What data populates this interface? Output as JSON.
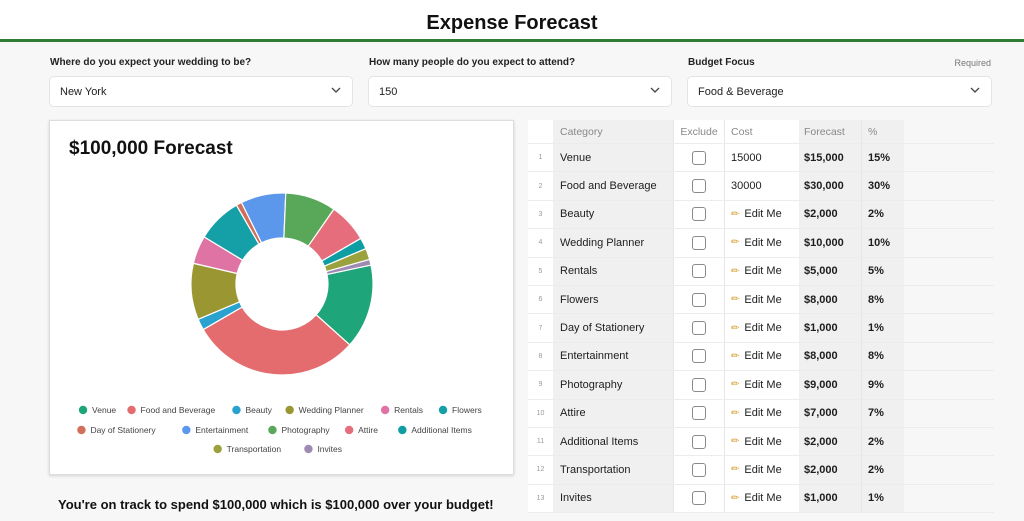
{
  "header": {
    "title": "Expense Forecast"
  },
  "questions": {
    "location": {
      "label": "Where do you expect your wedding to be?",
      "value": "New York"
    },
    "guests": {
      "label": "How many people do you expect to attend?",
      "value": "150"
    },
    "focus": {
      "label": "Budget Focus",
      "required": "Required",
      "value": "Food & Beverage"
    }
  },
  "forecast_card": {
    "title": "$100,000 Forecast"
  },
  "chart_data": {
    "type": "pie",
    "title": "$100,000 Forecast",
    "categories": [
      "Venue",
      "Food and Beverage",
      "Beauty",
      "Wedding Planner",
      "Rentals",
      "Flowers",
      "Day of Stationery",
      "Entertainment",
      "Photography",
      "Attire",
      "Additional Items",
      "Transportation",
      "Invites"
    ],
    "values": [
      15,
      30,
      2,
      10,
      5,
      8,
      1,
      8,
      9,
      7,
      2,
      2,
      1
    ],
    "colors": [
      "#1fa57a",
      "#e46c6e",
      "#2aa2cf",
      "#9a9632",
      "#de73a4",
      "#14a0a6",
      "#d0705b",
      "#5b97ea",
      "#59a85a",
      "#e56d7c",
      "#0d9da2",
      "#9ba23d",
      "#9f8ab4"
    ],
    "legend_position": "bottom"
  },
  "summary": {
    "message": "You're on track to spend $100,000 which is $100,000 over your budget!"
  },
  "table": {
    "columns": {
      "category": "Category",
      "exclude": "Exclude",
      "cost": "Cost",
      "forecast": "Forecast",
      "pct": "%"
    },
    "edit_label": "Edit Me",
    "rows": [
      {
        "n": "1",
        "category": "Venue",
        "cost": "15000",
        "editable": false,
        "forecast": "$15,000",
        "pct": "15%"
      },
      {
        "n": "2",
        "category": "Food and Beverage",
        "cost": "30000",
        "editable": false,
        "forecast": "$30,000",
        "pct": "30%"
      },
      {
        "n": "3",
        "category": "Beauty",
        "cost": "",
        "editable": true,
        "forecast": "$2,000",
        "pct": "2%"
      },
      {
        "n": "4",
        "category": "Wedding Planner",
        "cost": "",
        "editable": true,
        "forecast": "$10,000",
        "pct": "10%"
      },
      {
        "n": "5",
        "category": "Rentals",
        "cost": "",
        "editable": true,
        "forecast": "$5,000",
        "pct": "5%"
      },
      {
        "n": "6",
        "category": "Flowers",
        "cost": "",
        "editable": true,
        "forecast": "$8,000",
        "pct": "8%"
      },
      {
        "n": "7",
        "category": "Day of Stationery",
        "cost": "",
        "editable": true,
        "forecast": "$1,000",
        "pct": "1%"
      },
      {
        "n": "8",
        "category": "Entertainment",
        "cost": "",
        "editable": true,
        "forecast": "$8,000",
        "pct": "8%"
      },
      {
        "n": "9",
        "category": "Photography",
        "cost": "",
        "editable": true,
        "forecast": "$9,000",
        "pct": "9%"
      },
      {
        "n": "10",
        "category": "Attire",
        "cost": "",
        "editable": true,
        "forecast": "$7,000",
        "pct": "7%"
      },
      {
        "n": "11",
        "category": "Additional Items",
        "cost": "",
        "editable": true,
        "forecast": "$2,000",
        "pct": "2%"
      },
      {
        "n": "12",
        "category": "Transportation",
        "cost": "",
        "editable": true,
        "forecast": "$2,000",
        "pct": "2%"
      },
      {
        "n": "13",
        "category": "Invites",
        "cost": "",
        "editable": true,
        "forecast": "$1,000",
        "pct": "1%"
      }
    ]
  }
}
